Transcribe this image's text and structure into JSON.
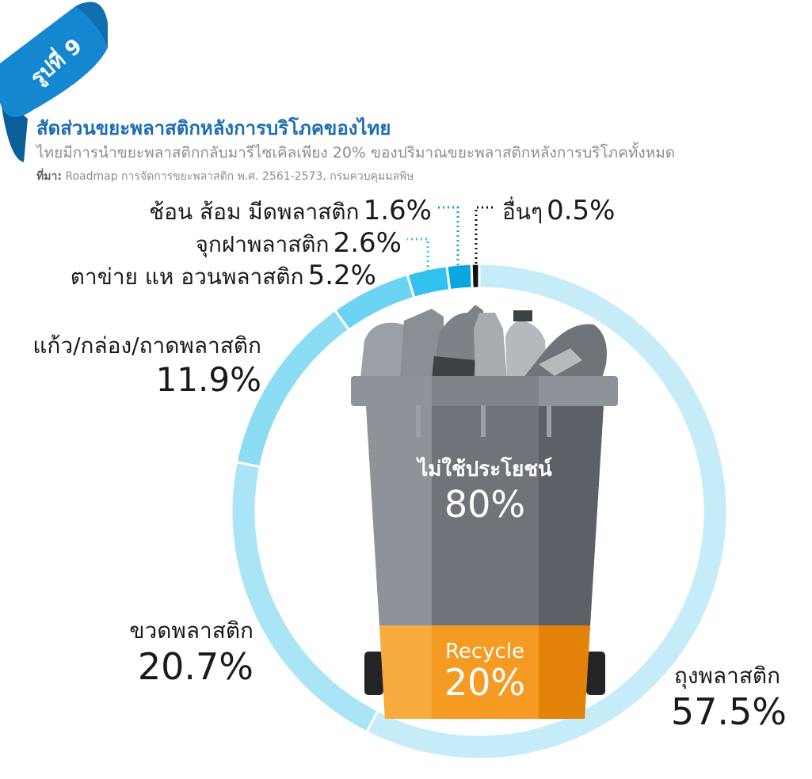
{
  "badge": {
    "text": "รูปที่ 9"
  },
  "header": {
    "title": "สัดส่วนขยะพลาสติกหลังการบริโภคของไทย",
    "subtitle": "ไทยมีการนำขยะพลาสติกกลับมารีไซเคิลเพียง 20% ของปริมาณขยะพลาสติกหลังการบริโภคทั้งหมด",
    "source_label": "ที่มา:",
    "source_text": "Roadmap การจัดการขยะพลาสติก พ.ศ. 2561-2573, กรมควบคุมมลพิษ"
  },
  "chart_data": [
    {
      "type": "pie",
      "variant": "donut",
      "categories": [
        "ถุงพลาสติก",
        "ขวดพลาสติก",
        "แก้ว/กล่อง/ถาดพลาสติก",
        "ตาข่าย แห อวนพลาสติก",
        "จุกฝาพลาสติก",
        "ช้อน ส้อม มีดพลาสติก",
        "อื่นๆ"
      ],
      "values": [
        57.5,
        20.7,
        11.9,
        5.2,
        2.6,
        1.6,
        0.5
      ],
      "labels": [
        "57.5%",
        "20.7%",
        "11.9%",
        "5.2%",
        "2.6%",
        "1.6%",
        "0.5%"
      ],
      "colors": [
        "#c6ecfa",
        "#a9e4f7",
        "#8cdcf4",
        "#6cd3f2",
        "#33c2ef",
        "#0aa6df",
        "#111111"
      ]
    },
    {
      "type": "bar",
      "variant": "stacked-bin",
      "categories": [
        "ไม่ใช้ประโยชน์",
        "Recycle"
      ],
      "values": [
        80,
        20
      ],
      "labels": [
        "80%",
        "20%"
      ],
      "colors": [
        "#6c7178",
        "#f79a1e"
      ]
    }
  ]
}
